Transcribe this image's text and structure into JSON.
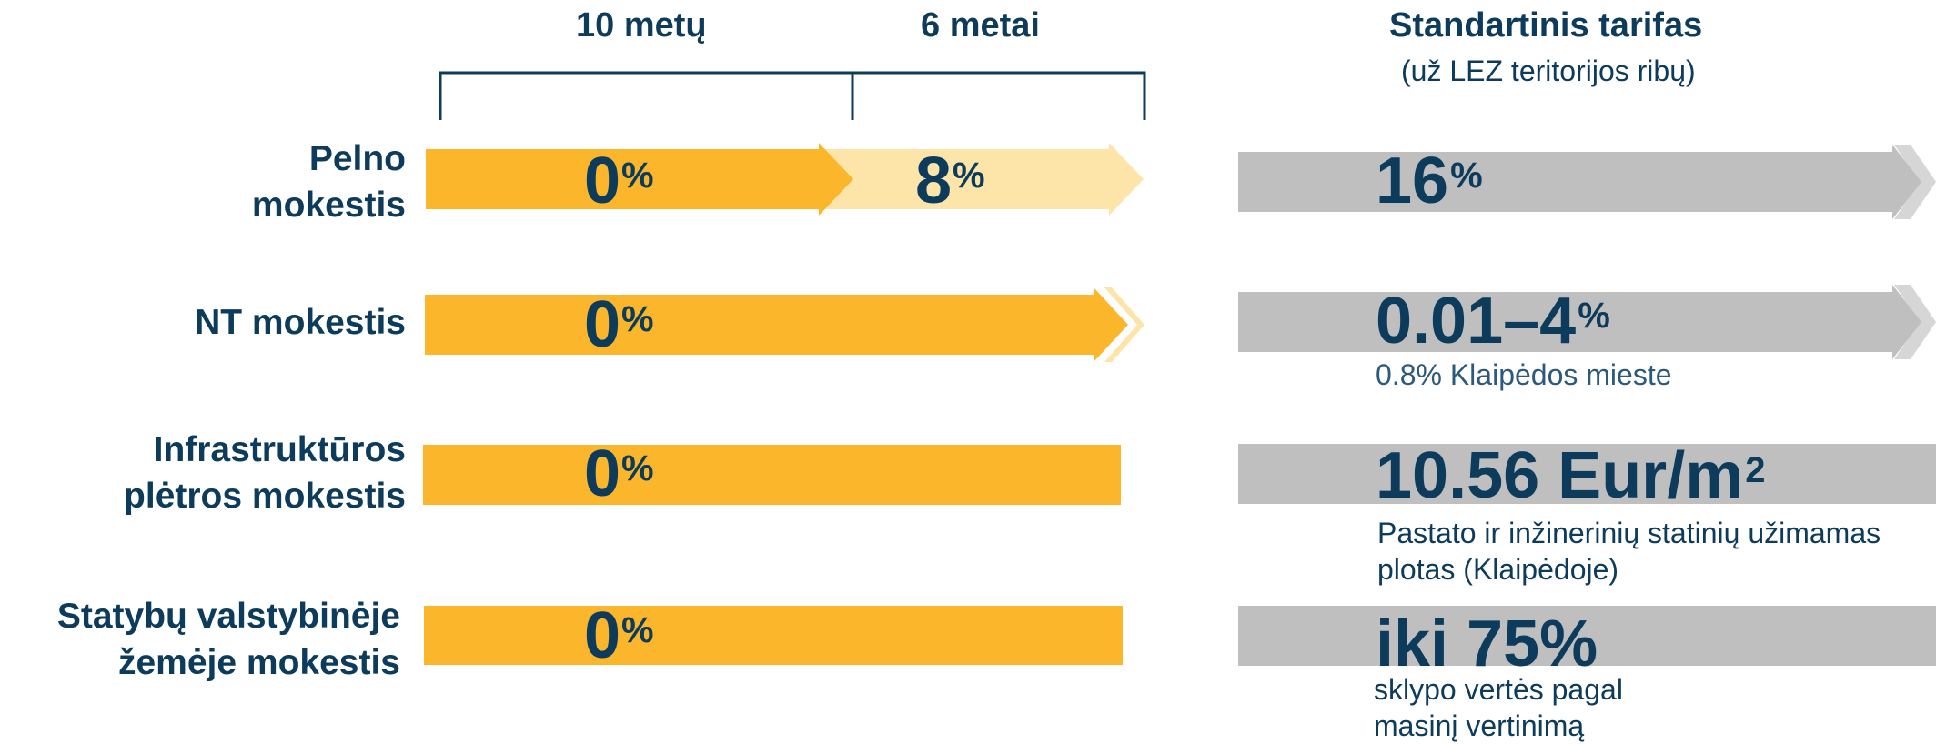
{
  "colors": {
    "orange": "#fbb62b",
    "light_orange": "#fde4a8",
    "gray": "#bfbfbf",
    "gray_tip": "#d6d6d6",
    "navy": "#0d3b5b",
    "note_text": "#2d5a7b"
  },
  "header": {
    "period_1": "10 metų",
    "period_2": "6 metai",
    "standard_title": "Standartinis tarifas",
    "standard_sub": "(už LEZ teritorijos ribų)"
  },
  "rows": [
    {
      "label_1": "Pelno",
      "label_2": "mokestis",
      "rate_1": "0",
      "rate_1_unit": "%",
      "rate_2": "8",
      "rate_2_unit": "%",
      "standard": "16",
      "standard_unit": "%"
    },
    {
      "label_1": "NT mokestis",
      "rate_1": "0",
      "rate_1_unit": "%",
      "standard": "0.01–4",
      "standard_unit": "%",
      "note_1": "0.8% Klaipėdos mieste"
    },
    {
      "label_1": "Infrastruktūros",
      "label_2": "plėtros mokestis",
      "rate_1": "0",
      "rate_1_unit": "%",
      "standard": "10.56 Eur/m",
      "standard_unit": "2",
      "note_1": "Pastato ir inžinerinių statinių užimamas",
      "note_2": "plotas (Klaipėdoje)"
    },
    {
      "label_1": "Statybų valstybinėje",
      "label_2": "žemėje mokestis",
      "rate_1": "0",
      "rate_1_unit": "%",
      "standard": "iki 75%",
      "note_1": "sklypo vertės pagal",
      "note_2": "masinį vertinimą"
    }
  ]
}
